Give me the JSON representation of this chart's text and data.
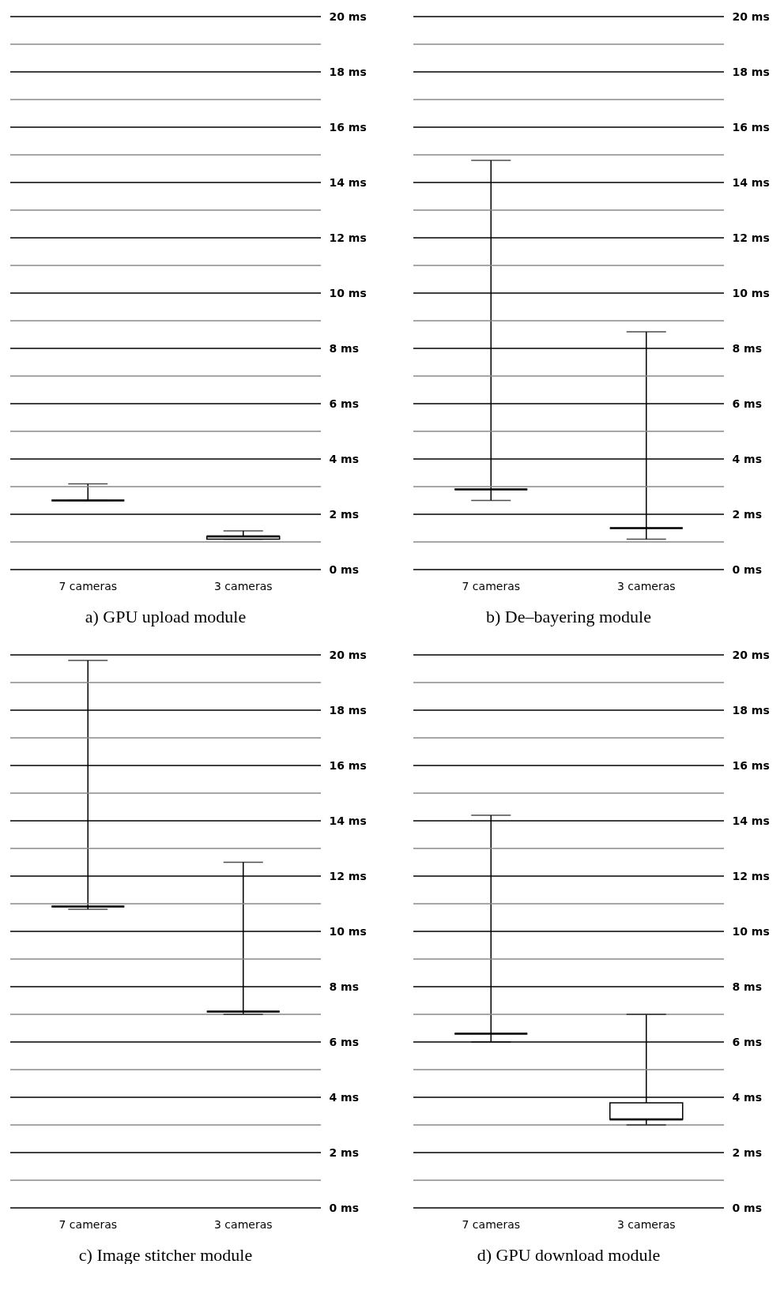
{
  "chart_data": [
    {
      "type": "box",
      "title": "a) GPU upload module",
      "categories": [
        "7 cameras",
        "3 cameras"
      ],
      "boxes": [
        {
          "low": 2.5,
          "q1": 2.5,
          "median": 2.5,
          "q3": 2.5,
          "high": 3.1
        },
        {
          "low": 1.1,
          "q1": 1.1,
          "median": 1.2,
          "q3": 1.2,
          "high": 1.4
        }
      ],
      "ylim": [
        0,
        20
      ],
      "grid": true,
      "yticks": [
        {
          "value": 0,
          "label": "0 ms"
        },
        {
          "value": 1,
          "label": null
        },
        {
          "value": 2,
          "label": "2 ms"
        },
        {
          "value": 3,
          "label": null
        },
        {
          "value": 4,
          "label": "4 ms"
        },
        {
          "value": 5,
          "label": null
        },
        {
          "value": 6,
          "label": "6 ms"
        },
        {
          "value": 7,
          "label": null
        },
        {
          "value": 8,
          "label": "8 ms"
        },
        {
          "value": 9,
          "label": null
        },
        {
          "value": 10,
          "label": "10 ms"
        },
        {
          "value": 11,
          "label": null
        },
        {
          "value": 12,
          "label": "12 ms"
        },
        {
          "value": 13,
          "label": null
        },
        {
          "value": 14,
          "label": "14 ms"
        },
        {
          "value": 15,
          "label": null
        },
        {
          "value": 16,
          "label": "16 ms"
        },
        {
          "value": 17,
          "label": null
        },
        {
          "value": 18,
          "label": "18 ms"
        },
        {
          "value": 19,
          "label": null
        },
        {
          "value": 20,
          "label": "20 ms"
        }
      ]
    },
    {
      "type": "box",
      "title": "b) De–bayering module",
      "categories": [
        "7 cameras",
        "3 cameras"
      ],
      "boxes": [
        {
          "low": 2.5,
          "q1": 2.9,
          "median": 2.9,
          "q3": 2.9,
          "high": 14.8
        },
        {
          "low": 1.1,
          "q1": 1.5,
          "median": 1.5,
          "q3": 1.5,
          "high": 8.6
        }
      ],
      "ylim": [
        0,
        20
      ],
      "grid": true,
      "yticks": [
        {
          "value": 0,
          "label": "0 ms"
        },
        {
          "value": 1,
          "label": null
        },
        {
          "value": 2,
          "label": "2 ms"
        },
        {
          "value": 3,
          "label": null
        },
        {
          "value": 4,
          "label": "4 ms"
        },
        {
          "value": 5,
          "label": null
        },
        {
          "value": 6,
          "label": "6 ms"
        },
        {
          "value": 7,
          "label": null
        },
        {
          "value": 8,
          "label": "8 ms"
        },
        {
          "value": 9,
          "label": null
        },
        {
          "value": 10,
          "label": "10 ms"
        },
        {
          "value": 11,
          "label": null
        },
        {
          "value": 12,
          "label": "12 ms"
        },
        {
          "value": 13,
          "label": null
        },
        {
          "value": 14,
          "label": "14 ms"
        },
        {
          "value": 15,
          "label": null
        },
        {
          "value": 16,
          "label": "16 ms"
        },
        {
          "value": 17,
          "label": null
        },
        {
          "value": 18,
          "label": "18 ms"
        },
        {
          "value": 19,
          "label": null
        },
        {
          "value": 20,
          "label": "20 ms"
        }
      ]
    },
    {
      "type": "box",
      "title": "c) Image stitcher module",
      "categories": [
        "7 cameras",
        "3 cameras"
      ],
      "boxes": [
        {
          "low": 10.8,
          "q1": 10.9,
          "median": 10.9,
          "q3": 10.9,
          "high": 19.8
        },
        {
          "low": 7.0,
          "q1": 7.1,
          "median": 7.1,
          "q3": 7.1,
          "high": 12.5
        }
      ],
      "ylim": [
        0,
        20
      ],
      "grid": true,
      "yticks": [
        {
          "value": 0,
          "label": "0 ms"
        },
        {
          "value": 1,
          "label": null
        },
        {
          "value": 2,
          "label": "2 ms"
        },
        {
          "value": 3,
          "label": null
        },
        {
          "value": 4,
          "label": "4 ms"
        },
        {
          "value": 5,
          "label": null
        },
        {
          "value": 6,
          "label": "6 ms"
        },
        {
          "value": 7,
          "label": null
        },
        {
          "value": 8,
          "label": "8 ms"
        },
        {
          "value": 9,
          "label": null
        },
        {
          "value": 10,
          "label": "10 ms"
        },
        {
          "value": 11,
          "label": null
        },
        {
          "value": 12,
          "label": "12 ms"
        },
        {
          "value": 13,
          "label": null
        },
        {
          "value": 14,
          "label": "14 ms"
        },
        {
          "value": 15,
          "label": null
        },
        {
          "value": 16,
          "label": "16 ms"
        },
        {
          "value": 17,
          "label": null
        },
        {
          "value": 18,
          "label": "18 ms"
        },
        {
          "value": 19,
          "label": null
        },
        {
          "value": 20,
          "label": "20 ms"
        }
      ]
    },
    {
      "type": "box",
      "title": "d) GPU download module",
      "categories": [
        "7 cameras",
        "3 cameras"
      ],
      "boxes": [
        {
          "low": 6.0,
          "q1": 6.3,
          "median": 6.3,
          "q3": 6.3,
          "high": 14.2
        },
        {
          "low": 3.0,
          "q1": 3.2,
          "median": 3.2,
          "q3": 3.8,
          "high": 7.0
        }
      ],
      "ylim": [
        0,
        20
      ],
      "grid": true,
      "yticks": [
        {
          "value": 0,
          "label": "0 ms"
        },
        {
          "value": 1,
          "label": null
        },
        {
          "value": 2,
          "label": "2 ms"
        },
        {
          "value": 3,
          "label": null
        },
        {
          "value": 4,
          "label": "4 ms"
        },
        {
          "value": 5,
          "label": null
        },
        {
          "value": 6,
          "label": "6 ms"
        },
        {
          "value": 7,
          "label": null
        },
        {
          "value": 8,
          "label": "8 ms"
        },
        {
          "value": 9,
          "label": null
        },
        {
          "value": 10,
          "label": "10 ms"
        },
        {
          "value": 11,
          "label": null
        },
        {
          "value": 12,
          "label": "12 ms"
        },
        {
          "value": 13,
          "label": null
        },
        {
          "value": 14,
          "label": "14 ms"
        },
        {
          "value": 15,
          "label": null
        },
        {
          "value": 16,
          "label": "16 ms"
        },
        {
          "value": 17,
          "label": null
        },
        {
          "value": 18,
          "label": "18 ms"
        },
        {
          "value": 19,
          "label": null
        },
        {
          "value": 20,
          "label": "20 ms"
        }
      ]
    }
  ]
}
